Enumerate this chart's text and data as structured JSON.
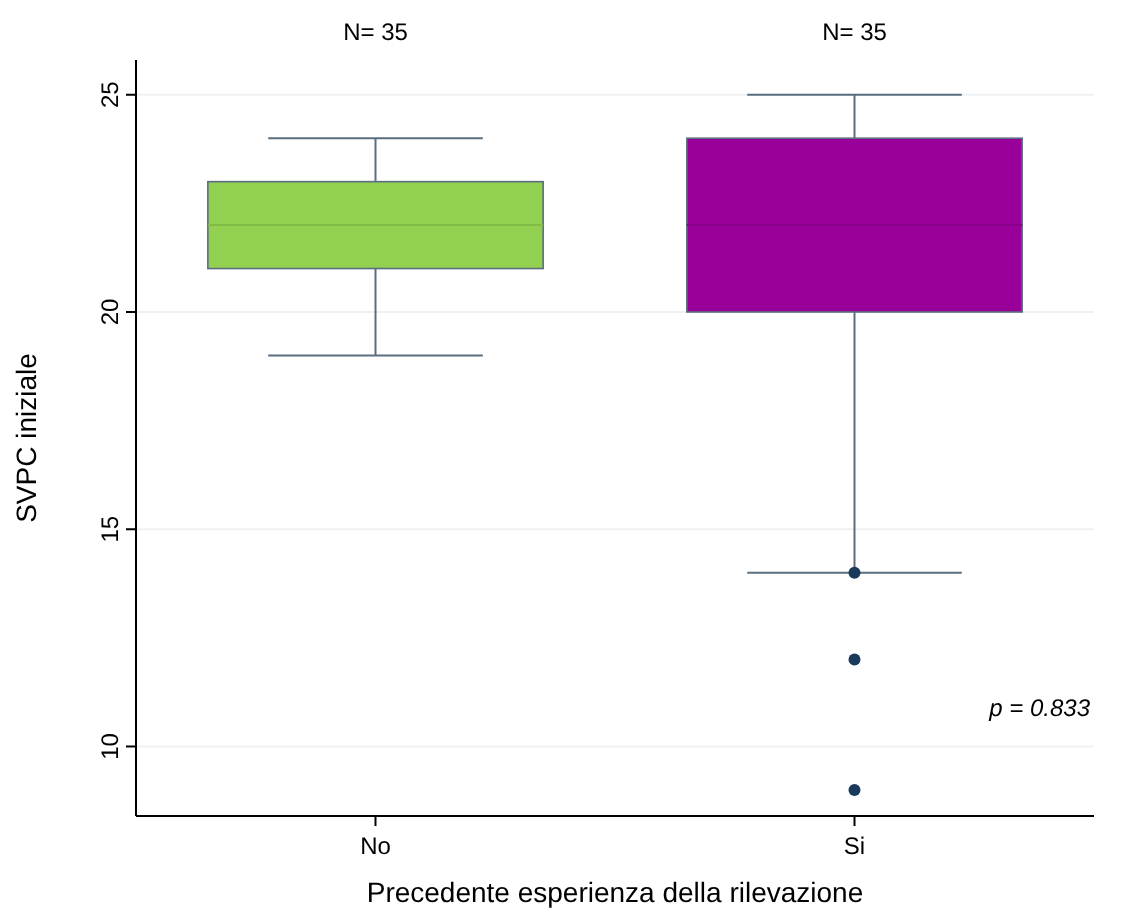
{
  "chart_data": {
    "type": "box",
    "categories": [
      "No",
      "Si"
    ],
    "xlabel": "Precedente esperienza della rilevazione",
    "ylabel": "SVPC iniziale",
    "ylim": [
      8.4,
      25.8
    ],
    "yticks": [
      10,
      15,
      20,
      25
    ],
    "grid": "y",
    "series": [
      {
        "color": "#92d050",
        "boxes": [
          {
            "low": 19,
            "q1": 21,
            "median": 22,
            "q3": 23,
            "high": 24
          },
          null
        ]
      },
      {
        "color": "#990099",
        "boxes": [
          null,
          {
            "low": 14,
            "q1": 20,
            "median": 22,
            "q3": 24,
            "high": 25,
            "outliers": [
              14,
              12,
              9
            ]
          }
        ]
      }
    ],
    "annotations": [
      "N= 35",
      "N= 35",
      "p = 0.833"
    ]
  }
}
